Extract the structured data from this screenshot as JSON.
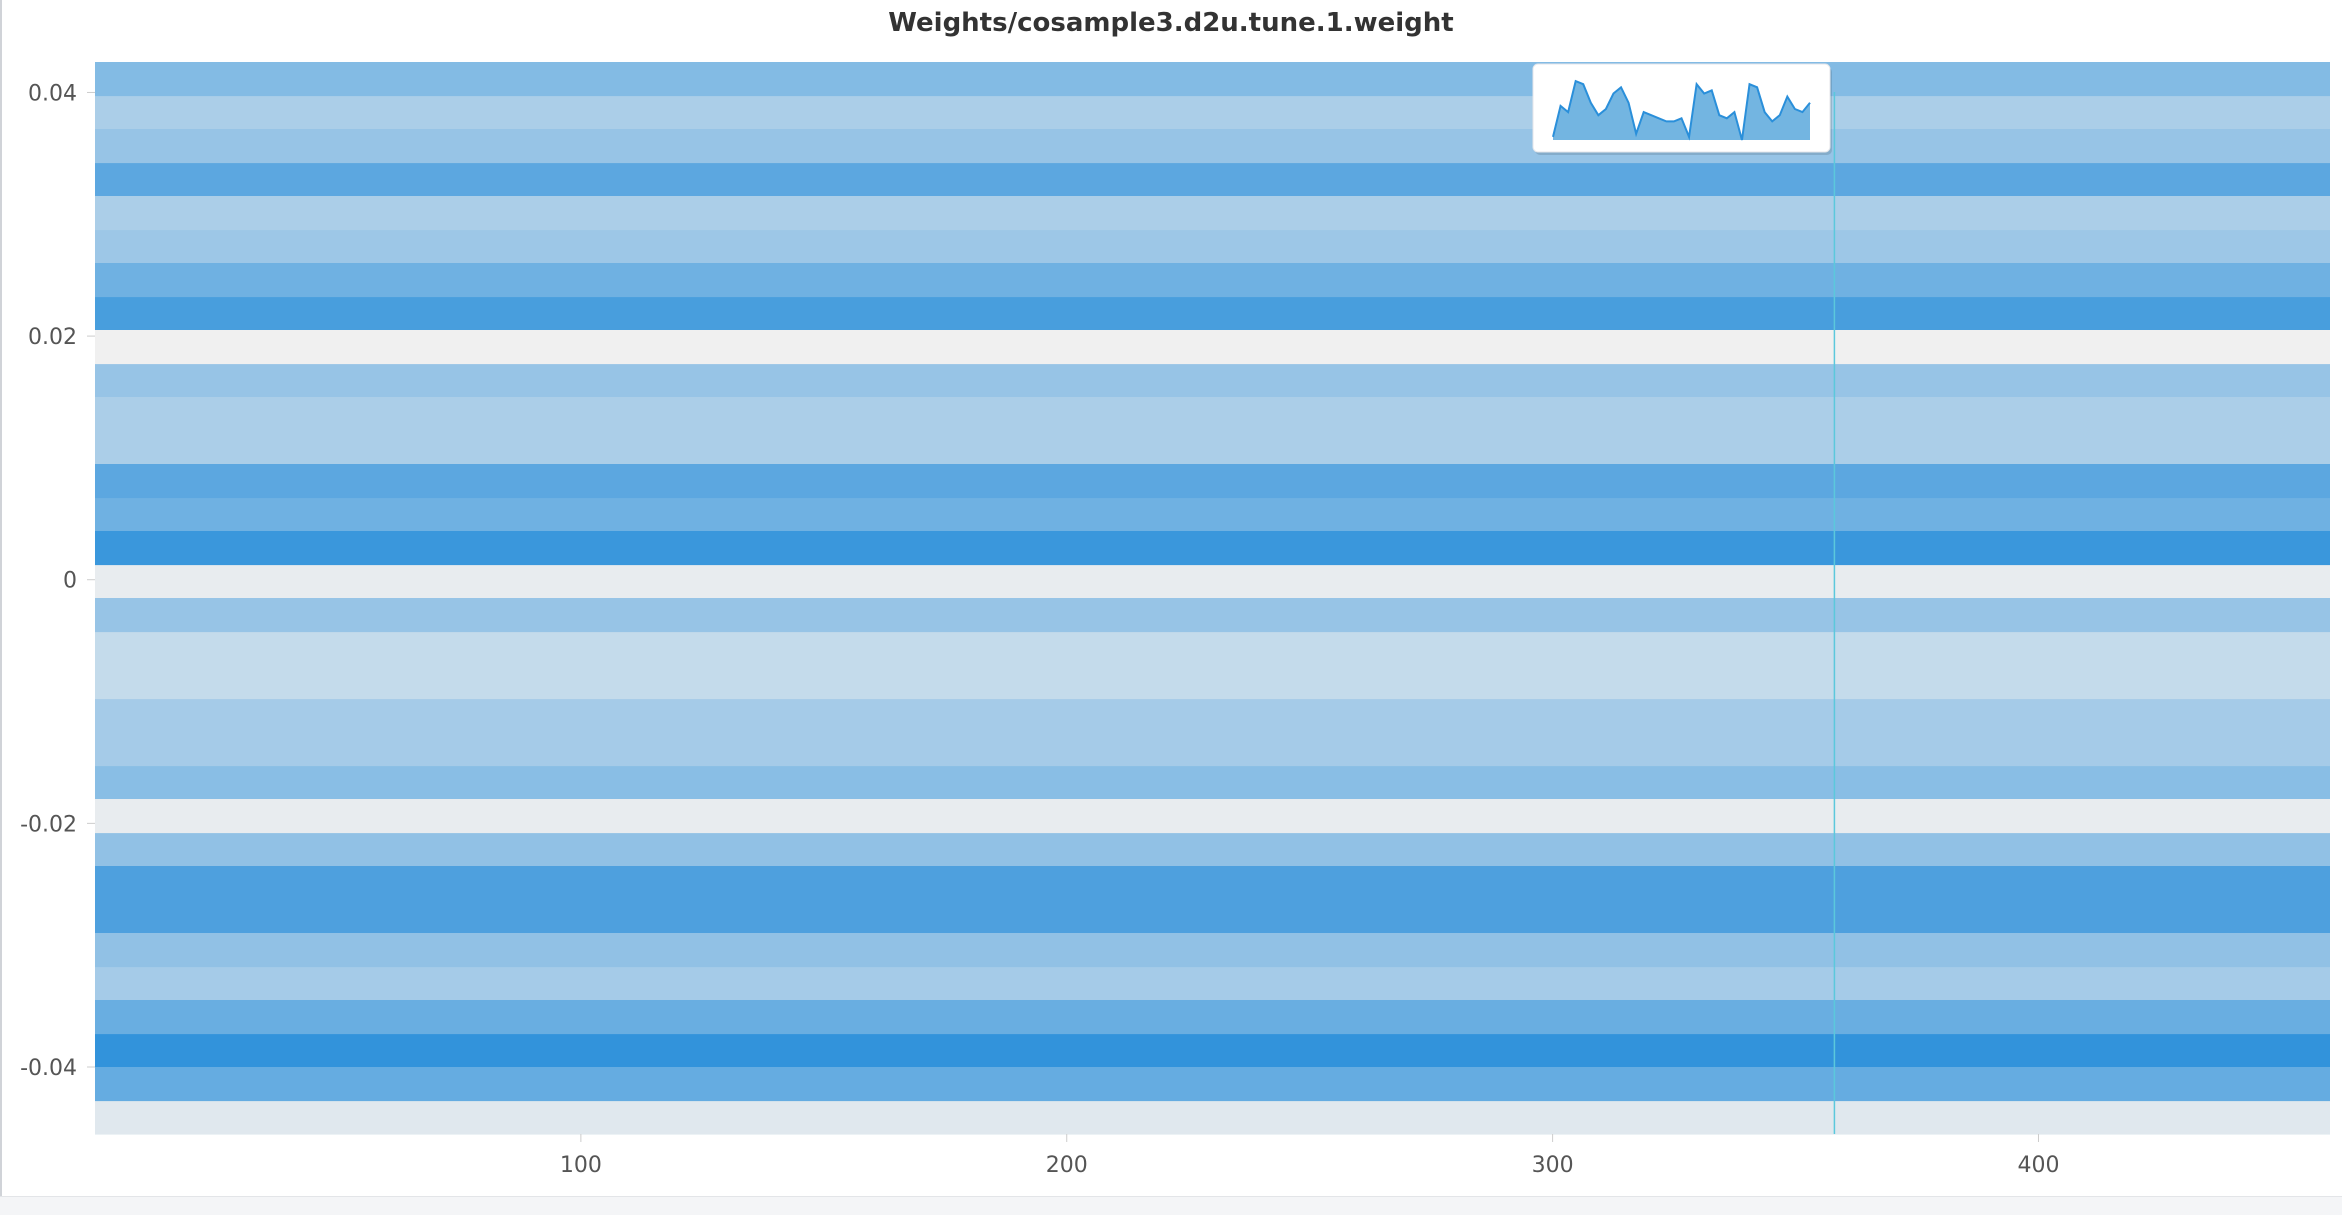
{
  "window": {
    "title": "Weights/cosample3.d2u.tune.1.weight"
  },
  "chart_data": {
    "type": "heatmap",
    "title": "Weights/cosample3.d2u.tune.1.weight",
    "xlabel": "",
    "ylabel": "",
    "xlim": [
      0,
      460
    ],
    "ylim": [
      -0.0455,
      0.0425
    ],
    "x_ticks": [
      {
        "value": 100,
        "label": "100"
      },
      {
        "value": 200,
        "label": "200"
      },
      {
        "value": 300,
        "label": "300"
      },
      {
        "value": 400,
        "label": "400"
      }
    ],
    "y_ticks": [
      {
        "value": 0.04,
        "label": "0.04"
      },
      {
        "value": 0.02,
        "label": "0.02"
      },
      {
        "value": 0,
        "label": "0"
      },
      {
        "value": -0.02,
        "label": "-0.02"
      },
      {
        "value": -0.04,
        "label": "-0.04"
      }
    ],
    "bin_edges_y": [
      0.0425,
      0.0397,
      0.037,
      0.0342,
      0.0315,
      0.0287,
      0.026,
      0.0232,
      0.0205,
      0.0177,
      0.015,
      0.0122,
      0.0095,
      0.0067,
      0.004,
      0.0012,
      -0.0015,
      -0.0043,
      -0.007,
      -0.0098,
      -0.0125,
      -0.0153,
      -0.018,
      -0.0208,
      -0.0235,
      -0.0263,
      -0.029,
      -0.0318,
      -0.0345,
      -0.0373,
      -0.04,
      -0.0428,
      -0.0455
    ],
    "bin_intensity": [
      0.55,
      0.35,
      0.45,
      0.75,
      0.35,
      0.42,
      0.65,
      0.85,
      0.0,
      0.45,
      0.35,
      0.35,
      0.75,
      0.65,
      0.92,
      0.04,
      0.45,
      0.22,
      0.22,
      0.38,
      0.38,
      0.52,
      0.04,
      0.48,
      0.82,
      0.82,
      0.48,
      0.38,
      0.68,
      0.96,
      0.7,
      0.08
    ],
    "hover_x": 358,
    "tooltip_histogram": [
      0.05,
      0.55,
      0.45,
      0.95,
      0.9,
      0.6,
      0.4,
      0.5,
      0.75,
      0.85,
      0.6,
      0.1,
      0.45,
      0.4,
      0.35,
      0.3,
      0.3,
      0.35,
      0.05,
      0.9,
      0.75,
      0.8,
      0.4,
      0.35,
      0.45,
      0.0,
      0.9,
      0.85,
      0.45,
      0.3,
      0.4,
      0.7,
      0.5,
      0.45,
      0.6
    ],
    "colors": {
      "light": "#f0f0f0",
      "dark": "#2a8fda",
      "crosshair": "#5bc8dc",
      "axis_text": "#555555",
      "tooltip_fill": "#5aa8dc",
      "tooltip_line": "#2a8fda"
    }
  }
}
